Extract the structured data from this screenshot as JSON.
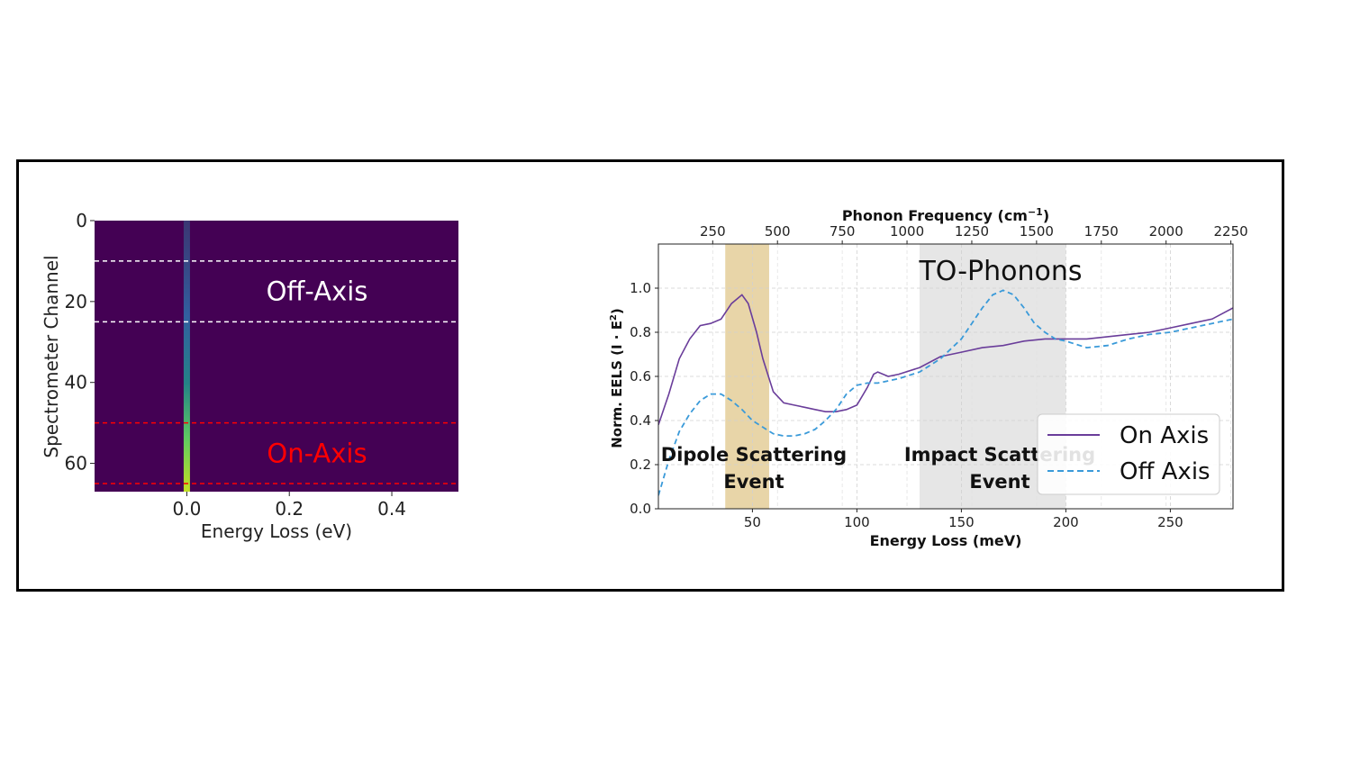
{
  "chart_data": [
    {
      "type": "heatmap",
      "xlabel": "Energy Loss (eV)",
      "ylabel": "Spectrometer Channel",
      "x_ticks": [
        "0.0",
        "0.2",
        "0.4"
      ],
      "x_tick_values": [
        0.0,
        0.2,
        0.4
      ],
      "y_ticks": [
        "0",
        "20",
        "40",
        "60"
      ],
      "y_tick_values": [
        0,
        20,
        40,
        60
      ],
      "xlim": [
        -0.18,
        0.53
      ],
      "ylim": [
        0,
        67
      ],
      "y_inverted": true,
      "colormap": "viridis",
      "background_color": "#440154",
      "zero_loss_peak_energy": 0.0,
      "regions": [
        {
          "label": "Off-Axis",
          "channel_range": [
            10,
            25
          ],
          "color": "#ffffff"
        },
        {
          "label": "On-Axis",
          "channel_range": [
            50,
            65
          ],
          "color": "#ff0000"
        }
      ]
    },
    {
      "type": "line",
      "xlabel": "Energy Loss (meV)",
      "ylabel": "Norm. EELS (I · E²)",
      "ylabel_parts": {
        "main": "Norm. EELS (I · E",
        "sup": "2",
        "end": ")"
      },
      "top_xlabel": "Phonon Frequency (cm⁻¹)",
      "top_xlabel_parts": {
        "main": "Phonon Frequency (cm",
        "sup": "−1",
        "end": ")"
      },
      "xlim": [
        5,
        280
      ],
      "ylim": [
        0.0,
        1.2
      ],
      "x_ticks": [
        50,
        100,
        150,
        200,
        250
      ],
      "y_ticks": [
        "0.0",
        "0.2",
        "0.4",
        "0.6",
        "0.8",
        "1.0"
      ],
      "y_tick_values": [
        0.0,
        0.2,
        0.4,
        0.6,
        0.8,
        1.0
      ],
      "top_x_ticks": [
        250,
        500,
        750,
        1000,
        1250,
        1500,
        1750,
        2000,
        2250
      ],
      "grid": true,
      "legend_position": "lower-right",
      "annotations": [
        {
          "text": "TO-Phonons",
          "x": 170,
          "y": 1.08
        },
        {
          "text_lines": [
            "Dipole Scattering",
            "Event"
          ],
          "x": 48,
          "y": 0.19
        },
        {
          "text_lines": [
            "Impact Scattering",
            "Event"
          ],
          "x": 160,
          "y": 0.19
        }
      ],
      "shaded_regions": [
        {
          "x_range": [
            37,
            58
          ],
          "color": "#e8d5a8"
        },
        {
          "x_range": [
            130,
            200
          ],
          "color": "#e6e6e6"
        }
      ],
      "series": [
        {
          "name": "On Axis",
          "color": "#6a3d9a",
          "dash": "solid",
          "x": [
            5,
            10,
            15,
            20,
            25,
            30,
            35,
            40,
            45,
            48,
            52,
            55,
            60,
            65,
            70,
            75,
            80,
            85,
            90,
            95,
            100,
            105,
            108,
            110,
            115,
            120,
            130,
            140,
            150,
            160,
            170,
            180,
            190,
            200,
            210,
            220,
            230,
            240,
            250,
            260,
            270,
            280
          ],
          "y": [
            0.38,
            0.52,
            0.68,
            0.77,
            0.83,
            0.84,
            0.86,
            0.93,
            0.97,
            0.93,
            0.8,
            0.68,
            0.53,
            0.48,
            0.47,
            0.46,
            0.45,
            0.44,
            0.44,
            0.45,
            0.47,
            0.55,
            0.61,
            0.62,
            0.6,
            0.61,
            0.64,
            0.69,
            0.71,
            0.73,
            0.74,
            0.76,
            0.77,
            0.77,
            0.77,
            0.78,
            0.79,
            0.8,
            0.82,
            0.84,
            0.86,
            0.91
          ]
        },
        {
          "name": "Off Axis",
          "color": "#3a9ad9",
          "dash": "dashed",
          "x": [
            5,
            10,
            15,
            20,
            25,
            30,
            35,
            40,
            45,
            50,
            55,
            60,
            65,
            70,
            75,
            80,
            85,
            90,
            95,
            100,
            105,
            110,
            120,
            130,
            140,
            150,
            155,
            160,
            165,
            170,
            175,
            180,
            185,
            190,
            195,
            200,
            210,
            220,
            230,
            240,
            250,
            260,
            270,
            280
          ],
          "y": [
            0.06,
            0.22,
            0.35,
            0.43,
            0.49,
            0.52,
            0.52,
            0.49,
            0.45,
            0.4,
            0.37,
            0.34,
            0.33,
            0.33,
            0.34,
            0.36,
            0.4,
            0.45,
            0.52,
            0.56,
            0.57,
            0.57,
            0.59,
            0.62,
            0.68,
            0.77,
            0.84,
            0.91,
            0.97,
            0.99,
            0.97,
            0.91,
            0.84,
            0.8,
            0.77,
            0.76,
            0.73,
            0.74,
            0.77,
            0.79,
            0.8,
            0.82,
            0.84,
            0.86
          ]
        }
      ]
    }
  ]
}
